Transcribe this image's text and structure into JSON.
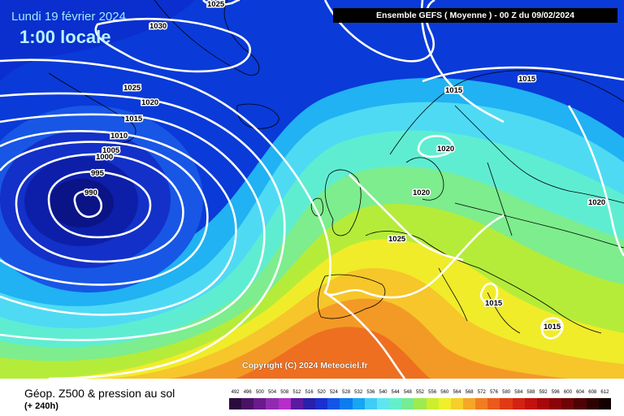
{
  "header": {
    "date": "Lundi 19 février 2024",
    "time": "1:00 locale",
    "model": "Ensemble GEFS  ( Moyenne )  -  00 Z du 09/02/2024"
  },
  "copyright": "Copyright (C) 2024 Meteociel.fr",
  "footer": {
    "title": "Géop. Z500 & pression au sol",
    "subtitle": "(+ 240h)"
  },
  "legend": {
    "scale": [
      "492",
      "496",
      "500",
      "504",
      "508",
      "512",
      "516",
      "520",
      "524",
      "528",
      "532",
      "536",
      "540",
      "544",
      "548",
      "552",
      "556",
      "560",
      "564",
      "568",
      "572",
      "576",
      "580",
      "584",
      "588",
      "592",
      "596",
      "600",
      "604",
      "608",
      "612"
    ],
    "colors": [
      "#2b0b3f",
      "#4a1265",
      "#6a1a8a",
      "#8f2bb0",
      "#b52ec8",
      "#5a1aa3",
      "#2a1fa8",
      "#1a2fd0",
      "#1255e8",
      "#0c7cf0",
      "#17a6f2",
      "#3fcdf5",
      "#5ee6f0",
      "#63f0c9",
      "#74ec93",
      "#9eeb4f",
      "#cdee2e",
      "#f1ee2b",
      "#f6cf2a",
      "#f5a728",
      "#f27d21",
      "#ea5a1a",
      "#e03a15",
      "#d32211",
      "#c2110e",
      "#a7080a",
      "#8a0408",
      "#6e0405",
      "#4f0203",
      "#2e0101",
      "#120000"
    ]
  },
  "isobar_labels": [
    "1025",
    "1030",
    "1025",
    "1020",
    "1015",
    "1010",
    "1005",
    "1000",
    "995",
    "990",
    "1015",
    "1015",
    "1020",
    "1020",
    "1025",
    "1020",
    "1015",
    "1015"
  ]
}
